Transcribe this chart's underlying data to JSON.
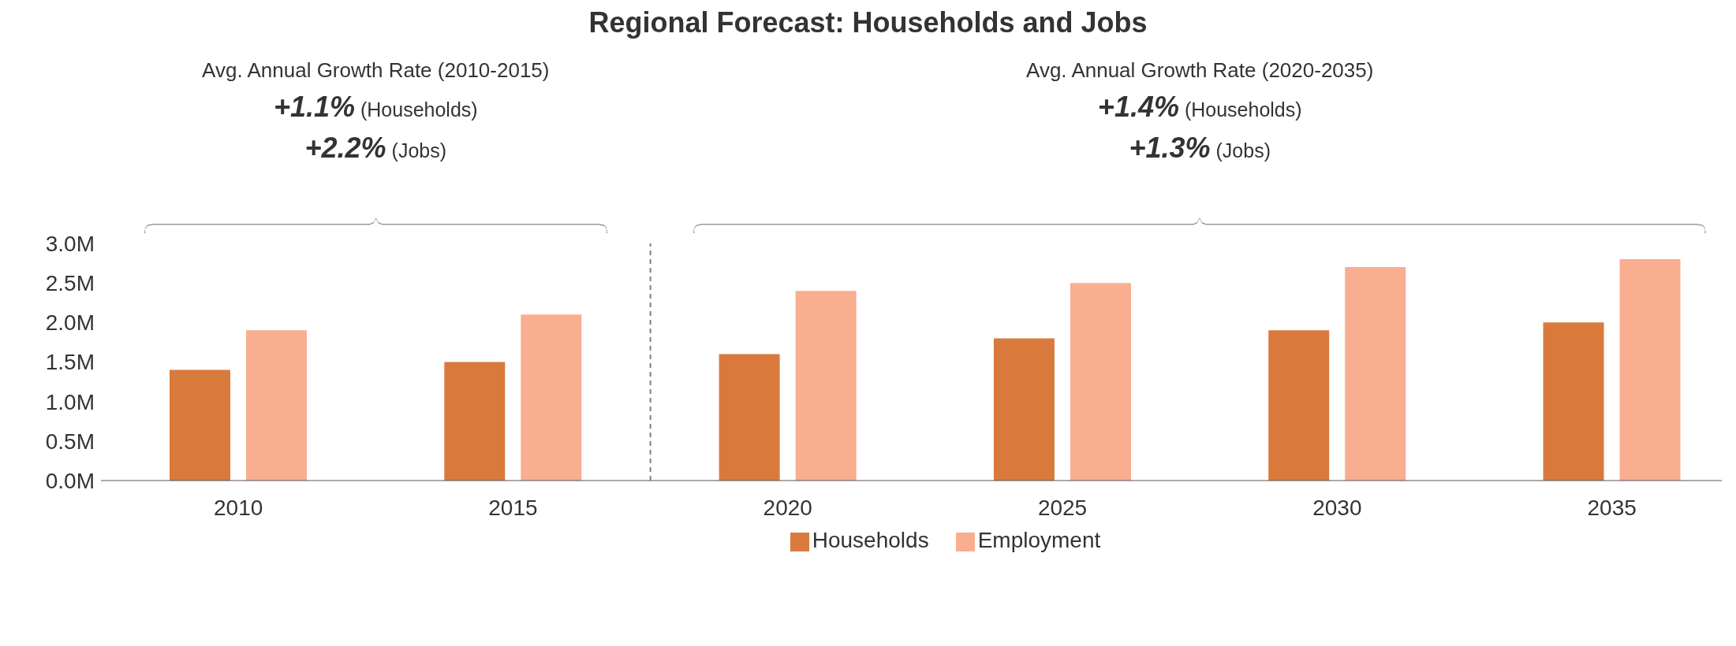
{
  "chart_data": {
    "type": "bar",
    "title": "Regional Forecast: Households and Jobs",
    "x": [
      2010,
      2015,
      2020,
      2025,
      2030,
      2035
    ],
    "xlim": [
      2007.5,
      2037
    ],
    "xticks": [
      2010,
      2015,
      2020,
      2025,
      2030,
      2035
    ],
    "ylim": [
      0,
      3
    ],
    "yticks": [
      {
        "value": 0,
        "label": "0.0M"
      },
      {
        "value": 0.5,
        "label": "0.5M"
      },
      {
        "value": 1,
        "label": "1.0M"
      },
      {
        "value": 1.5,
        "label": "1.5M"
      },
      {
        "value": 2,
        "label": "2.0M"
      },
      {
        "value": 2.5,
        "label": "2.5M"
      },
      {
        "value": 3,
        "label": "3.0M"
      }
    ],
    "series": [
      {
        "name": "Households",
        "color": "#d97a3c",
        "values": [
          1.4,
          1.5,
          1.6,
          1.8,
          1.9,
          2.0
        ]
      },
      {
        "name": "Employment",
        "color": "#f9ae8f",
        "values": [
          1.9,
          2.1,
          2.4,
          2.5,
          2.7,
          2.8
        ]
      }
    ],
    "ref_lines": [
      {
        "axis": "x",
        "value": 2017.5,
        "color": "#808080",
        "line_style": "dashed"
      }
    ],
    "annotations": [
      "Avg. Annual Growth Rate (2010-2015)",
      "+1.1% (Households)",
      "+2.2% (Jobs)",
      "Avg. Annual Growth Rate (2020-2035)",
      "+1.4% (Households)",
      "+1.3% (Jobs)"
    ],
    "grid": false,
    "legend": "bottom"
  }
}
